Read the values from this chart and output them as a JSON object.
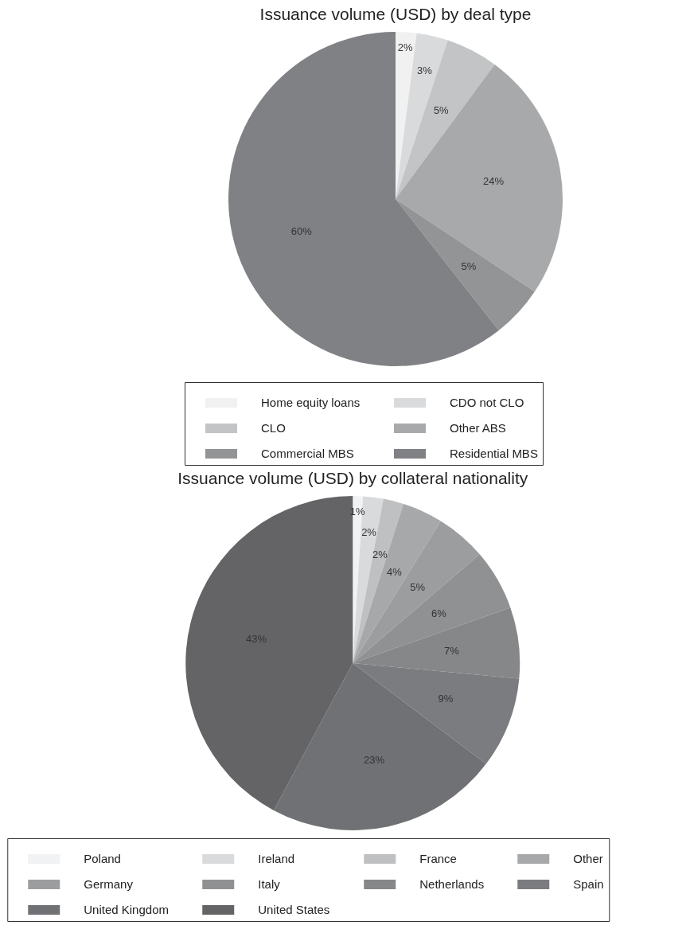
{
  "chart_data": [
    {
      "type": "pie",
      "title": "Issuance volume (USD) by deal type",
      "categories": [
        "Home equity loans",
        "CDO not CLO",
        "CLO",
        "Other ABS",
        "Commercial MBS",
        "Residential MBS"
      ],
      "values": [
        2,
        3,
        5,
        24,
        5,
        60
      ],
      "value_labels": [
        "2%",
        "3%",
        "5%",
        "24%",
        "5%",
        "60%"
      ],
      "colors": [
        "#f1f1f2",
        "#d9dadb",
        "#c3c4c5",
        "#a8a9ab",
        "#939496",
        "#808184"
      ],
      "legend": "bottom"
    },
    {
      "type": "pie",
      "title": "Issuance volume (USD) by collateral nationality",
      "categories": [
        "Poland",
        "Ireland",
        "France",
        "Other",
        "Germany",
        "Italy",
        "Netherlands",
        "Spain",
        "United Kingdom",
        "United States"
      ],
      "values": [
        1,
        2,
        2,
        4,
        5,
        6,
        7,
        9,
        23,
        43
      ],
      "value_labels": [
        "1%",
        "2%",
        "2%",
        "4%",
        "5%",
        "6%",
        "7%",
        "9%",
        "23%",
        "43%"
      ],
      "colors": [
        "#f1f2f3",
        "#d9dadb",
        "#bfc0c1",
        "#a7a8aa",
        "#9c9d9f",
        "#909193",
        "#868789",
        "#7b7c7f",
        "#707174",
        "#646466"
      ],
      "legend": "bottom"
    }
  ]
}
